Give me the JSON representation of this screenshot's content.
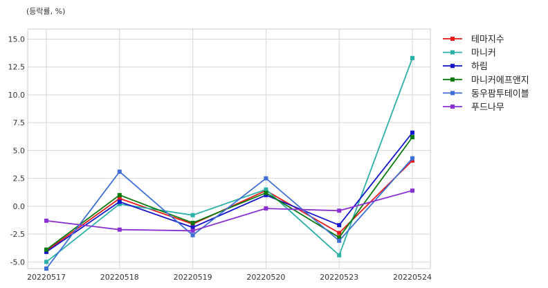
{
  "chart_data": {
    "type": "line",
    "unit_label": "(등락률, %)",
    "categories": [
      "20220517",
      "20220518",
      "20220519",
      "20220520",
      "20220523",
      "20220524"
    ],
    "y_ticks": [
      "-5.0",
      "-2.5",
      "0.0",
      "2.5",
      "5.0",
      "7.5",
      "10.0",
      "12.5",
      "15.0"
    ],
    "ylim": [
      -5.6,
      15.9
    ],
    "grid": true,
    "legend_position": "outside-right",
    "series": [
      {
        "name": "테마지수",
        "color": "#e8191a",
        "values": [
          -4.0,
          0.7,
          -1.6,
          1.4,
          -2.4,
          4.1
        ]
      },
      {
        "name": "마니커",
        "color": "#2bb0a8",
        "values": [
          -5.0,
          0.2,
          -0.8,
          1.5,
          -4.4,
          13.3
        ]
      },
      {
        "name": "하림",
        "color": "#1414c8",
        "values": [
          -4.1,
          0.4,
          -1.9,
          1.0,
          -1.7,
          6.6
        ]
      },
      {
        "name": "마니커에프앤지",
        "color": "#0a7a0a",
        "values": [
          -3.9,
          1.0,
          -1.5,
          1.2,
          -2.8,
          6.2
        ]
      },
      {
        "name": "동우팜투테이블",
        "color": "#3d6fd6",
        "values": [
          -5.6,
          3.1,
          -2.6,
          2.5,
          -3.1,
          4.3
        ]
      },
      {
        "name": "푸드나무",
        "color": "#8a2fd0",
        "values": [
          -1.3,
          -2.1,
          -2.2,
          -0.2,
          -0.4,
          1.4
        ]
      }
    ]
  }
}
